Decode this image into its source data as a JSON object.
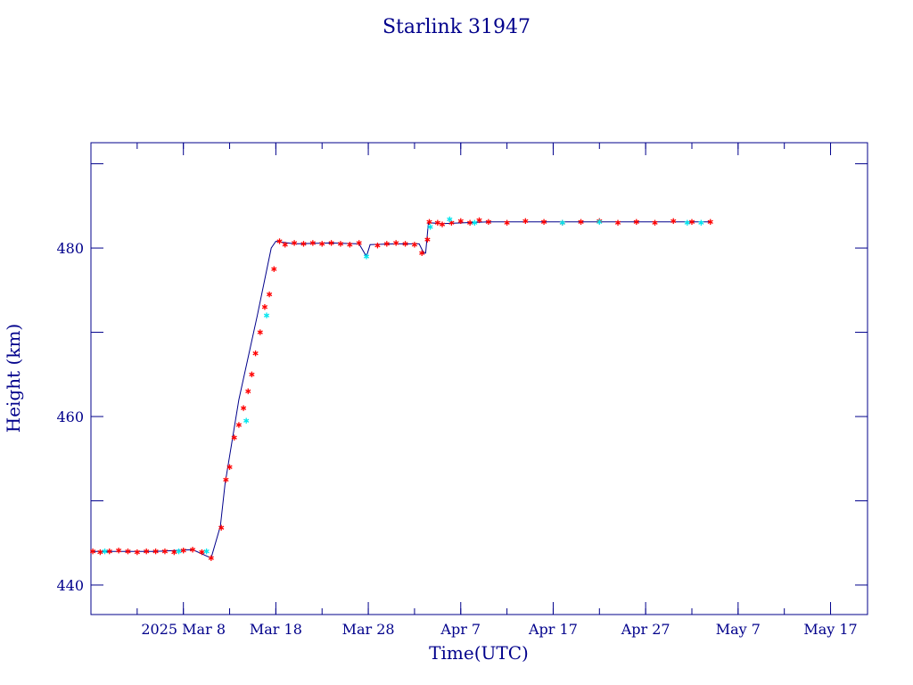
{
  "chart_data": {
    "type": "scatter",
    "title": "Starlink 31947",
    "xlabel": "Time(UTC)",
    "ylabel": "Height (km)",
    "xlim": [
      "2025-02-26",
      "2025-05-21"
    ],
    "ylim": [
      436.5,
      492.5
    ],
    "grid": false,
    "x_tick_labels": [
      {
        "date": "2025-03-08",
        "label": "2025 Mar  8"
      },
      {
        "date": "2025-03-18",
        "label": "Mar 18"
      },
      {
        "date": "2025-03-28",
        "label": "Mar 28"
      },
      {
        "date": "2025-04-07",
        "label": "Apr  7"
      },
      {
        "date": "2025-04-17",
        "label": "Apr 17"
      },
      {
        "date": "2025-04-27",
        "label": "Apr 27"
      },
      {
        "date": "2025-05-07",
        "label": "May  7"
      },
      {
        "date": "2025-05-17",
        "label": "May 17"
      }
    ],
    "y_tick_labels": [
      440,
      460,
      480
    ],
    "colors": {
      "axes": "#00008b",
      "line": "#00008b",
      "primary_marker": "#ff0000",
      "secondary_marker": "#00e5ee"
    },
    "series": [
      {
        "type": "line",
        "color": "#00008b",
        "x": [
          "2025-02-26",
          "2025-03-01",
          "2025-03-05",
          "2025-03-09",
          "2025-03-11",
          "2025-03-12",
          "2025-03-12.5",
          "2025-03-14",
          "2025-03-16",
          "2025-03-17.5",
          "2025-03-18",
          "2025-03-20",
          "2025-03-24",
          "2025-03-27",
          "2025-03-27.8",
          "2025-03-28.2",
          "2025-03-31",
          "2025-04-02.5",
          "2025-04-03",
          "2025-04-03.2",
          "2025-04-03.5",
          "2025-04-05",
          "2025-04-10",
          "2025-04-20",
          "2025-05-01",
          "2025-05-04"
        ],
        "y": [
          444.0,
          444.0,
          444.0,
          444.2,
          443.2,
          447.0,
          452.0,
          462.0,
          472.0,
          480.0,
          480.8,
          480.5,
          480.6,
          480.5,
          479.0,
          480.4,
          480.5,
          480.5,
          479.4,
          479.4,
          483.0,
          482.9,
          483.1,
          483.1,
          483.1,
          483.1
        ]
      },
      {
        "type": "scatter",
        "color": "#ff0000",
        "marker": "asterisk",
        "x": [
          "2025-02-26.2",
          "2025-02-27",
          "2025-02-28",
          "2025-03-01",
          "2025-03-02",
          "2025-03-03",
          "2025-03-04",
          "2025-03-05",
          "2025-03-06",
          "2025-03-07",
          "2025-03-08",
          "2025-03-09",
          "2025-03-10",
          "2025-03-11",
          "2025-03-12.1",
          "2025-03-12.6",
          "2025-03-13",
          "2025-03-13.5",
          "2025-03-14",
          "2025-03-14.5",
          "2025-03-15",
          "2025-03-15.4",
          "2025-03-15.8",
          "2025-03-16.3",
          "2025-03-16.8",
          "2025-03-17.3",
          "2025-03-17.8",
          "2025-03-18.4",
          "2025-03-19",
          "2025-03-20",
          "2025-03-21",
          "2025-03-22",
          "2025-03-23",
          "2025-03-24",
          "2025-03-25",
          "2025-03-26",
          "2025-03-27",
          "2025-03-29",
          "2025-03-30",
          "2025-03-31",
          "2025-04-01",
          "2025-04-02",
          "2025-04-02.8",
          "2025-04-03.4",
          "2025-04-03.6",
          "2025-04-04.5",
          "2025-04-05",
          "2025-04-06",
          "2025-04-07",
          "2025-04-08",
          "2025-04-09",
          "2025-04-10",
          "2025-04-12",
          "2025-04-14",
          "2025-04-16",
          "2025-04-18",
          "2025-04-20",
          "2025-04-22",
          "2025-04-24",
          "2025-04-26",
          "2025-04-28",
          "2025-04-30",
          "2025-05-02",
          "2025-05-04"
        ],
        "y": [
          444.0,
          443.9,
          444.0,
          444.1,
          444.0,
          443.9,
          444.0,
          444.0,
          444.0,
          443.9,
          444.1,
          444.2,
          443.9,
          443.2,
          446.8,
          452.5,
          454.0,
          457.5,
          459.0,
          461.0,
          463.0,
          465.0,
          467.5,
          470.0,
          473.0,
          474.5,
          477.5,
          480.8,
          480.4,
          480.6,
          480.5,
          480.6,
          480.5,
          480.6,
          480.5,
          480.4,
          480.6,
          480.3,
          480.5,
          480.6,
          480.5,
          480.4,
          479.4,
          481.0,
          483.1,
          483.0,
          482.8,
          483.0,
          483.2,
          483.0,
          483.3,
          483.1,
          483.0,
          483.2,
          483.1,
          483.0,
          483.1,
          483.2,
          483.0,
          483.1,
          483.0,
          483.2,
          483.1,
          483.1
        ]
      },
      {
        "type": "scatter",
        "color": "#00e5ee",
        "marker": "asterisk",
        "x": [
          "2025-02-27.5",
          "2025-03-07.5",
          "2025-03-10.5",
          "2025-03-14.8",
          "2025-03-17",
          "2025-03-27.8",
          "2025-04-03.7",
          "2025-04-05.8",
          "2025-04-08.5",
          "2025-04-18",
          "2025-04-22",
          "2025-05-01.5",
          "2025-05-03"
        ],
        "y": [
          444.0,
          444.0,
          444.0,
          459.5,
          472.0,
          479.0,
          482.5,
          483.4,
          483.0,
          483.0,
          483.1,
          483.0,
          483.0
        ]
      }
    ]
  }
}
